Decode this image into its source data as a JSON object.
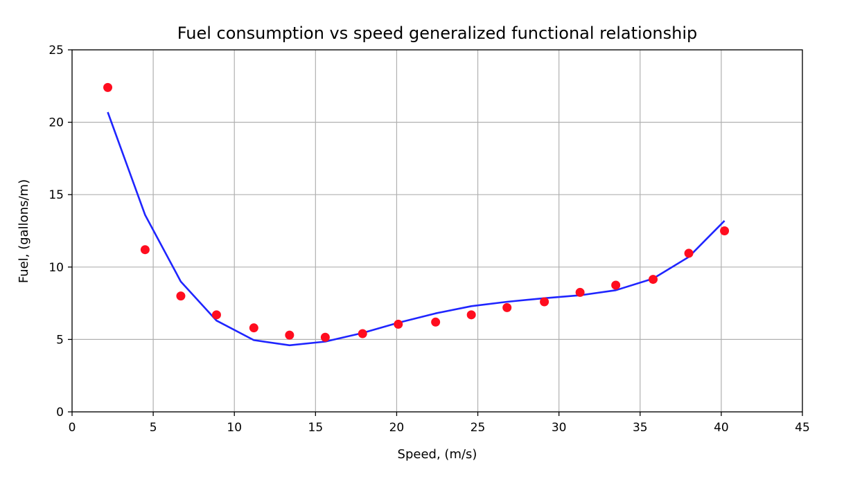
{
  "chart_data": {
    "type": "scatter",
    "title": "Fuel consumption vs speed generalized functional relationship",
    "xlabel": "Speed, (m/s)",
    "ylabel": "Fuel, (gallons/m)",
    "xlim": [
      0,
      45
    ],
    "ylim": [
      0,
      25
    ],
    "xticks": [
      0,
      5,
      10,
      15,
      20,
      25,
      30,
      35,
      40,
      45
    ],
    "yticks": [
      0,
      5,
      10,
      15,
      20,
      25
    ],
    "grid": true,
    "series": [
      {
        "kind": "scatter",
        "color": "#ff0d1f",
        "x": [
          2.2,
          4.5,
          6.7,
          8.9,
          11.2,
          13.4,
          15.6,
          17.9,
          20.1,
          22.4,
          24.6,
          26.8,
          29.1,
          31.3,
          33.5,
          35.8,
          38.0,
          40.2
        ],
        "y": [
          22.4,
          11.2,
          8.0,
          6.7,
          5.8,
          5.3,
          5.15,
          5.4,
          6.05,
          6.2,
          6.7,
          7.2,
          7.6,
          8.25,
          8.75,
          9.15,
          10.95,
          12.5
        ]
      },
      {
        "kind": "line",
        "color": "#1f25ff",
        "x": [
          2.2,
          4.5,
          6.7,
          8.9,
          11.2,
          13.4,
          15.6,
          17.9,
          20.1,
          22.4,
          24.6,
          26.8,
          29.1,
          31.3,
          33.5,
          35.8,
          38.0,
          40.2
        ],
        "y": [
          20.7,
          13.6,
          9.0,
          6.3,
          4.95,
          4.6,
          4.85,
          5.45,
          6.15,
          6.8,
          7.3,
          7.6,
          7.85,
          8.05,
          8.4,
          9.2,
          10.7,
          13.2
        ]
      }
    ]
  }
}
